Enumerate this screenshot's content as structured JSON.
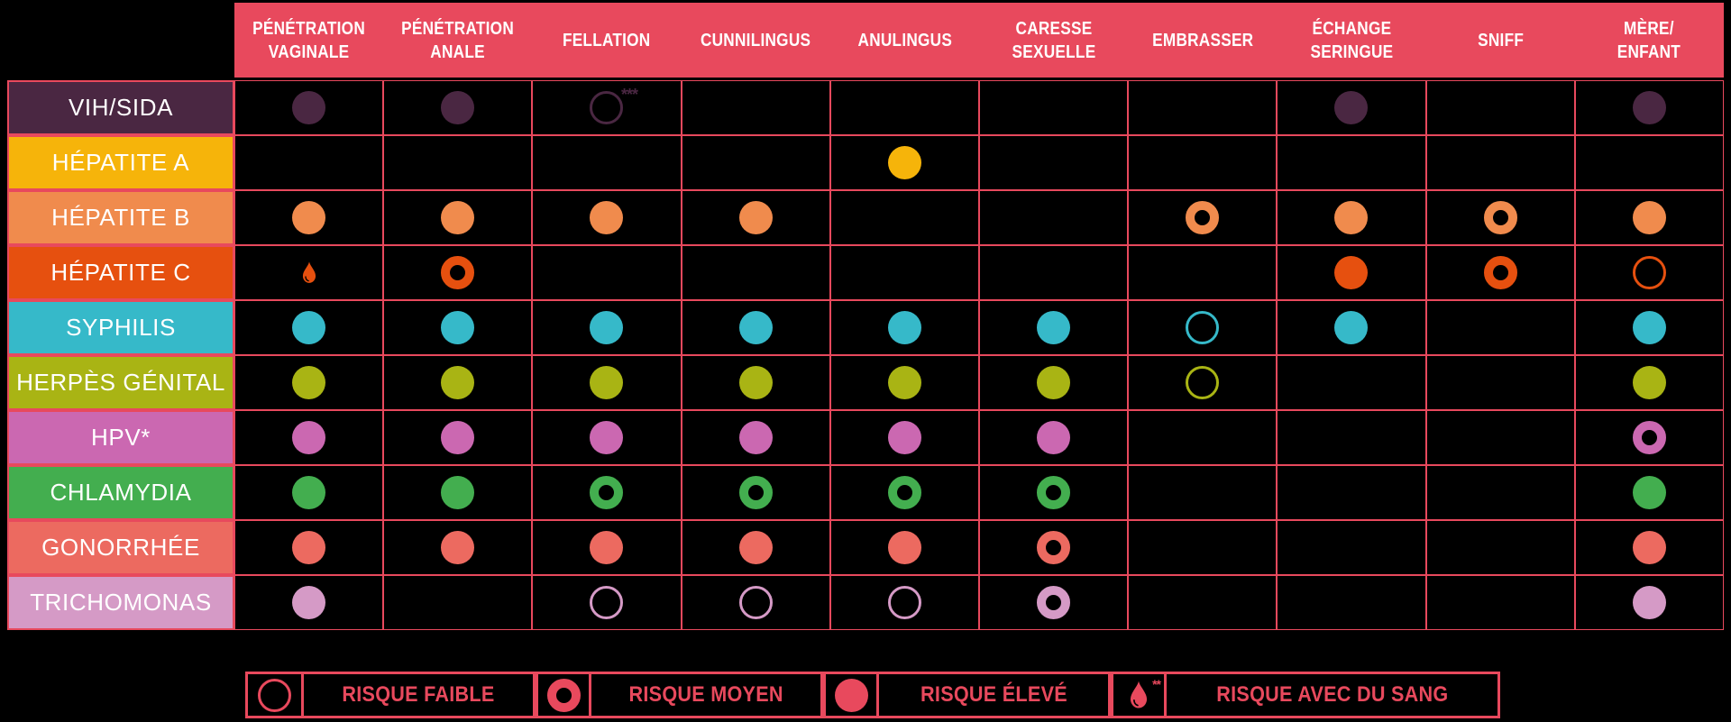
{
  "colors": {
    "pink": "#E8495D",
    "background": "#000000",
    "header_text": "#FFFFFF",
    "row_label_text": "#FFFFFF"
  },
  "chart_data": {
    "type": "table",
    "title": "",
    "columns": [
      {
        "id": "penetration-vaginale",
        "lines": [
          "PÉNÉTRATION",
          "VAGINALE"
        ]
      },
      {
        "id": "penetration-anale",
        "lines": [
          "PÉNÉTRATION",
          "ANALE"
        ]
      },
      {
        "id": "fellation",
        "lines": [
          "FELLATION"
        ]
      },
      {
        "id": "cunnilingus",
        "lines": [
          "CUNNILINGUS"
        ]
      },
      {
        "id": "anulingus",
        "lines": [
          "ANULINGUS"
        ]
      },
      {
        "id": "caresse-sexuelle",
        "lines": [
          "CARESSE",
          "SEXUELLE"
        ]
      },
      {
        "id": "embrasser",
        "lines": [
          "EMBRASSER"
        ]
      },
      {
        "id": "echange-seringue",
        "lines": [
          "ÉCHANGE",
          "SERINGUE"
        ]
      },
      {
        "id": "sniff",
        "lines": [
          "SNIFF"
        ]
      },
      {
        "id": "mere-enfant",
        "lines": [
          "MÈRE/",
          "ENFANT"
        ]
      }
    ],
    "rows": [
      {
        "id": "vih-sida",
        "label": "VIH/SIDA",
        "color": "#4A2742",
        "cells": [
          "eleve",
          "eleve",
          "faible",
          "",
          "",
          "",
          "",
          "eleve",
          "",
          "eleve"
        ],
        "note": {
          "col": 2,
          "text": "***"
        }
      },
      {
        "id": "hepatite-a",
        "label": "HÉPATITE A",
        "color": "#F6B40A",
        "cells": [
          "",
          "",
          "",
          "",
          "eleve",
          "",
          "",
          "",
          "",
          ""
        ]
      },
      {
        "id": "hepatite-b",
        "label": "HÉPATITE B",
        "color": "#F08B4D",
        "cells": [
          "eleve",
          "eleve",
          "eleve",
          "eleve",
          "",
          "",
          "moyen",
          "eleve",
          "moyen",
          "eleve"
        ]
      },
      {
        "id": "hepatite-c",
        "label": "HÉPATITE C",
        "color": "#E6500F",
        "cells": [
          "sang",
          "moyen",
          "",
          "",
          "",
          "",
          "",
          "eleve",
          "moyen",
          "faible"
        ]
      },
      {
        "id": "syphilis",
        "label": "SYPHILIS",
        "color": "#36B9C9",
        "cells": [
          "eleve",
          "eleve",
          "eleve",
          "eleve",
          "eleve",
          "eleve",
          "faible",
          "eleve",
          "",
          "eleve"
        ]
      },
      {
        "id": "herpes-genital",
        "label": "HERPÈS GÉNITAL",
        "color": "#A9B414",
        "cells": [
          "eleve",
          "eleve",
          "eleve",
          "eleve",
          "eleve",
          "eleve",
          "faible",
          "",
          "",
          "eleve"
        ]
      },
      {
        "id": "hpv",
        "label": "HPV*",
        "color": "#CB68B1",
        "cells": [
          "eleve",
          "eleve",
          "eleve",
          "eleve",
          "eleve",
          "eleve",
          "",
          "",
          "",
          "moyen"
        ]
      },
      {
        "id": "chlamydia",
        "label": "CHLAMYDIA",
        "color": "#43AE4F",
        "cells": [
          "eleve",
          "eleve",
          "moyen",
          "moyen",
          "moyen",
          "moyen",
          "",
          "",
          "",
          "eleve"
        ]
      },
      {
        "id": "gonorrhee",
        "label": "GONORRHÉE",
        "color": "#EC6A60",
        "cells": [
          "eleve",
          "eleve",
          "eleve",
          "eleve",
          "eleve",
          "moyen",
          "",
          "",
          "",
          "eleve"
        ]
      },
      {
        "id": "trichomonas",
        "label": "TRICHOMONAS",
        "color": "#D59AC6",
        "cells": [
          "eleve",
          "",
          "faible",
          "faible",
          "faible",
          "moyen",
          "",
          "",
          "",
          "eleve"
        ]
      }
    ],
    "risk_levels": {
      "faible": "RISQUE FAIBLE",
      "moyen": "RISQUE MOYEN",
      "eleve": "RISQUE ÉLEVÉ",
      "sang": "RISQUE AVEC DU SANG"
    }
  },
  "legend": {
    "items": [
      {
        "icon": "faible",
        "label": "RISQUE FAIBLE"
      },
      {
        "icon": "moyen",
        "label": "RISQUE MOYEN"
      },
      {
        "icon": "eleve",
        "label": "RISQUE ÉLEVÉ"
      },
      {
        "icon": "sang",
        "label": "RISQUE AVEC DU SANG",
        "note": "**"
      }
    ]
  }
}
